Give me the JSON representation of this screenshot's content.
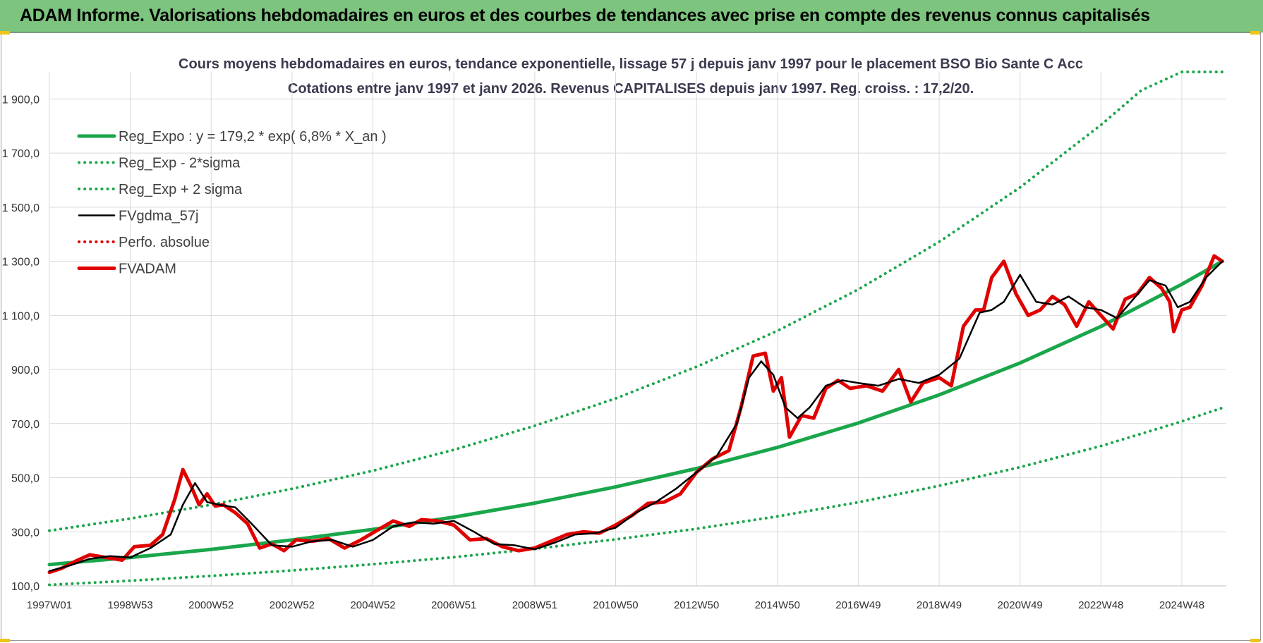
{
  "header": {
    "title": "ADAM Informe. Valorisations hebdomadaires en euros et des courbes de tendances avec prise en compte des revenus connus capitalisés"
  },
  "chart_data": {
    "type": "line",
    "title": "Cours moyens hebdomadaires en euros, tendance exponentielle, lissage 57 j depuis janv 1997  pour le placement BSO Bio Sante C Acc",
    "subtitle": "Cotations entre janv 1997 et janv 2026. Revenus CAPITALISES depuis janv 1997. Reg. croiss. : 17,2/20.",
    "x_ticks": [
      "1997W01",
      "1998W53",
      "2000W52",
      "2002W52",
      "2004W52",
      "2006W51",
      "2008W51",
      "2010W50",
      "2012W50",
      "2014W50",
      "2016W49",
      "2018W49",
      "2020W49",
      "2022W48",
      "2024W48"
    ],
    "x_tick_years": [
      1997.0,
      1999.0,
      2001.0,
      2003.0,
      2005.0,
      2007.0,
      2009.0,
      2011.0,
      2013.0,
      2015.0,
      2017.0,
      2019.0,
      2021.0,
      2023.0,
      2025.0
    ],
    "xlim": [
      1997.0,
      2026.1
    ],
    "ylim": [
      100,
      2000
    ],
    "y_ticks": [
      100,
      300,
      500,
      700,
      900,
      1100,
      1300,
      1500,
      1700,
      1900
    ],
    "y_tick_labels": [
      "100,0",
      "300,0",
      "500,0",
      "700,0",
      "900,0",
      "1 100,0",
      "1 300,0",
      "1 500,0",
      "1 700,0",
      "1 900,0"
    ],
    "grid": true,
    "legend_position": "top-left",
    "series": [
      {
        "name": "Reg_Expo : y = 179,2 * exp( 6,8% *  X_an )",
        "style": "solid-thick",
        "color": "#1aa64b",
        "x": [
          1997,
          1999,
          2001,
          2003,
          2005,
          2007,
          2009,
          2011,
          2013,
          2015,
          2017,
          2019,
          2021,
          2023,
          2025,
          2026
        ],
        "y": [
          179,
          205,
          235,
          270,
          309,
          354,
          406,
          466,
          534,
          612,
          702,
          806,
          924,
          1059,
          1215,
          1300
        ]
      },
      {
        "name": "Reg_Exp - 2*sigma",
        "style": "dotted",
        "color": "#1aa64b",
        "x": [
          1997,
          1999,
          2001,
          2003,
          2005,
          2007,
          2009,
          2011,
          2013,
          2015,
          2017,
          2019,
          2021,
          2023,
          2025,
          2026
        ],
        "y": [
          104,
          119,
          137,
          157,
          180,
          206,
          237,
          272,
          311,
          357,
          409,
          470,
          539,
          617,
          708,
          758
        ]
      },
      {
        "name": "Reg_Exp + 2 sigma",
        "style": "dotted",
        "color": "#1aa64b",
        "x": [
          1997,
          1999,
          2001,
          2003,
          2005,
          2007,
          2009,
          2011,
          2013,
          2015,
          2017,
          2019,
          2021,
          2023,
          2024,
          2025,
          2026
        ],
        "y": [
          304,
          349,
          400,
          459,
          526,
          603,
          692,
          793,
          910,
          1043,
          1196,
          1372,
          1573,
          1804,
          1932,
          2000,
          2000
        ]
      },
      {
        "name": "FVgdma_57j",
        "style": "solid",
        "color": "#000000",
        "x": [
          1997,
          1997.5,
          1998,
          1998.5,
          1999,
          1999.5,
          2000,
          2000.3,
          2000.6,
          2000.9,
          2001.2,
          2001.6,
          2002,
          2002.5,
          2003,
          2003.5,
          2004,
          2004.5,
          2005,
          2005.5,
          2006,
          2006.5,
          2007,
          2007.5,
          2008,
          2008.5,
          2009,
          2009.5,
          2010,
          2010.5,
          2011,
          2011.5,
          2012,
          2012.5,
          2013,
          2013.5,
          2014,
          2014.3,
          2014.6,
          2014.9,
          2015.2,
          2015.5,
          2015.8,
          2016.2,
          2016.6,
          2017,
          2017.5,
          2018,
          2018.5,
          2019,
          2019.5,
          2020,
          2020.3,
          2020.6,
          2021,
          2021.4,
          2021.8,
          2022.2,
          2022.6,
          2023,
          2023.4,
          2023.8,
          2024.2,
          2024.6,
          2024.9,
          2025.2,
          2025.6,
          2026
        ],
        "y": [
          155,
          175,
          200,
          210,
          205,
          240,
          290,
          400,
          480,
          410,
          400,
          390,
          330,
          250,
          245,
          265,
          270,
          245,
          270,
          320,
          335,
          330,
          340,
          300,
          255,
          250,
          235,
          260,
          290,
          295,
          315,
          370,
          410,
          460,
          520,
          580,
          700,
          870,
          930,
          880,
          760,
          720,
          760,
          840,
          860,
          850,
          840,
          865,
          850,
          880,
          940,
          1110,
          1120,
          1150,
          1250,
          1150,
          1140,
          1170,
          1130,
          1120,
          1090,
          1160,
          1230,
          1210,
          1130,
          1150,
          1240,
          1300
        ]
      },
      {
        "name": "Perfo. absolue",
        "style": "dotted",
        "color": "#e00000",
        "x": [],
        "y": []
      },
      {
        "name": "FVADAM",
        "style": "solid-thick",
        "color": "#e00000",
        "x": [
          1997,
          1997.3,
          1997.7,
          1998,
          1998.4,
          1998.8,
          1999.1,
          1999.5,
          1999.8,
          2000.1,
          2000.3,
          2000.5,
          2000.7,
          2000.9,
          2001.1,
          2001.3,
          2001.6,
          2001.9,
          2002.2,
          2002.5,
          2002.8,
          2003.1,
          2003.5,
          2003.9,
          2004.3,
          2004.7,
          2005.1,
          2005.5,
          2005.9,
          2006.2,
          2006.6,
          2007,
          2007.4,
          2007.8,
          2008.2,
          2008.6,
          2009,
          2009.4,
          2009.8,
          2010.2,
          2010.6,
          2011,
          2011.4,
          2011.8,
          2012.2,
          2012.6,
          2013,
          2013.4,
          2013.8,
          2014.1,
          2014.4,
          2014.7,
          2014.9,
          2015.1,
          2015.3,
          2015.6,
          2015.9,
          2016.2,
          2016.5,
          2016.8,
          2017.2,
          2017.6,
          2018,
          2018.3,
          2018.6,
          2019,
          2019.3,
          2019.6,
          2019.9,
          2020.1,
          2020.3,
          2020.6,
          2020.9,
          2021.2,
          2021.5,
          2021.8,
          2022.1,
          2022.4,
          2022.7,
          2023,
          2023.3,
          2023.6,
          2023.9,
          2024.2,
          2024.5,
          2024.7,
          2024.8,
          2025,
          2025.2,
          2025.5,
          2025.8,
          2026
        ],
        "y": [
          150,
          165,
          195,
          215,
          205,
          195,
          245,
          250,
          290,
          420,
          530,
          470,
          400,
          440,
          395,
          400,
          370,
          330,
          240,
          255,
          230,
          270,
          265,
          275,
          240,
          270,
          305,
          340,
          320,
          345,
          340,
          325,
          270,
          275,
          245,
          230,
          240,
          265,
          290,
          300,
          295,
          325,
          360,
          405,
          410,
          440,
          520,
          570,
          600,
          760,
          950,
          960,
          820,
          870,
          650,
          730,
          720,
          830,
          860,
          830,
          840,
          820,
          900,
          780,
          850,
          870,
          840,
          1060,
          1120,
          1120,
          1240,
          1300,
          1180,
          1100,
          1120,
          1170,
          1140,
          1060,
          1150,
          1100,
          1050,
          1160,
          1180,
          1240,
          1200,
          1150,
          1040,
          1120,
          1130,
          1210,
          1320,
          1300
        ]
      }
    ]
  }
}
